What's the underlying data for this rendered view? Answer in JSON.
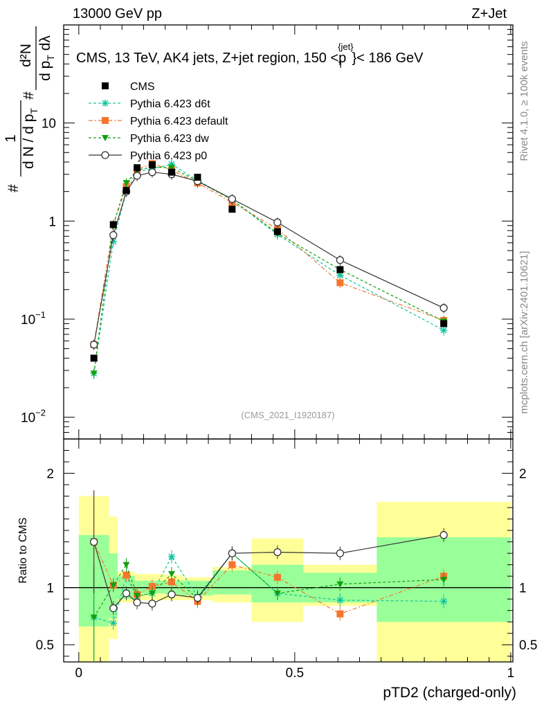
{
  "header": {
    "left": "13000 GeV pp",
    "right": "Z+Jet"
  },
  "side_labels": {
    "rivet": "Rivet 4.1.0, ≥ 100k events",
    "mcplots": "mcplots.cern.ch [arXiv:2401.10621]"
  },
  "chart_data": {
    "type": "line",
    "title": "CMS, 13 TeV, AK4 jets, Z+jet region, 150 <p",
    "title_sup": "{jet}",
    "title_sub": "T",
    "title_tail": "}< 186 GeV",
    "analysis_id": "(CMS_2021_I1920187)",
    "xlabel": "pTD2 (charged-only)",
    "ylabel_parts": {
      "num_prefix": "1",
      "den": "d N / d p",
      "den_sub": "T",
      "right_num": "d²N",
      "right_den": "d p",
      "right_den_sub": "T",
      "right_den_tail": " dλ",
      "hash": "#"
    },
    "ratio_ylabel": "Ratio to CMS",
    "xlim": [
      -0.035,
      1.005
    ],
    "ylim_main": [
      0.006,
      100
    ],
    "ylim_ratio": [
      0.35,
      2.3
    ],
    "x_ticks": [
      {
        "v": 0,
        "label": "0"
      },
      {
        "v": 0.5,
        "label": "0.5"
      },
      {
        "v": 1,
        "label": "1"
      }
    ],
    "y_ticks_main": [
      {
        "v": 0.01,
        "base": "10",
        "exp": "−2"
      },
      {
        "v": 0.1,
        "base": "10",
        "exp": "−1"
      },
      {
        "v": 1,
        "base": "1",
        "exp": ""
      },
      {
        "v": 10,
        "base": "10",
        "exp": ""
      }
    ],
    "y_ticks_ratio": [
      {
        "v": 0.5,
        "label": "0.5"
      },
      {
        "v": 1,
        "label": "1"
      },
      {
        "v": 2,
        "label": "2"
      }
    ],
    "bins": [
      {
        "lo": 0.0,
        "hi": 0.07,
        "band_green": [
          0.66,
          1.46
        ],
        "band_yellow": [
          0.35,
          1.8
        ]
      },
      {
        "lo": 0.07,
        "hi": 0.09,
        "band_green": [
          0.73,
          1.3
        ],
        "band_yellow": [
          0.55,
          1.62
        ]
      },
      {
        "lo": 0.09,
        "hi": 0.13,
        "band_green": [
          0.9,
          1.1
        ],
        "band_yellow": [
          0.87,
          1.14
        ]
      },
      {
        "lo": 0.13,
        "hi": 0.2,
        "band_green": [
          0.95,
          1.06
        ],
        "band_yellow": [
          0.89,
          1.12
        ]
      },
      {
        "lo": 0.2,
        "hi": 0.24,
        "band_green": [
          0.94,
          1.06
        ],
        "band_yellow": [
          0.89,
          1.11
        ]
      },
      {
        "lo": 0.24,
        "hi": 0.31,
        "band_green": [
          0.93,
          1.06
        ],
        "band_yellow": [
          0.89,
          1.09
        ]
      },
      {
        "lo": 0.31,
        "hi": 0.4,
        "band_green": [
          0.94,
          1.15
        ],
        "band_yellow": [
          0.87,
          1.18
        ]
      },
      {
        "lo": 0.4,
        "hi": 0.52,
        "band_green": [
          0.87,
          1.2
        ],
        "band_yellow": [
          0.7,
          1.43
        ]
      },
      {
        "lo": 0.52,
        "hi": 0.69,
        "band_green": [
          0.87,
          1.13
        ],
        "band_yellow": [
          0.84,
          1.2
        ]
      },
      {
        "lo": 0.69,
        "hi": 1.0,
        "band_green": [
          0.7,
          1.44
        ],
        "band_yellow": [
          0.35,
          1.75
        ]
      }
    ],
    "series": [
      {
        "name": "CMS",
        "marker": "square",
        "color": "#000000",
        "dash": "none",
        "x": [
          0.035,
          0.08,
          0.11,
          0.135,
          0.17,
          0.215,
          0.275,
          0.355,
          0.46,
          0.605,
          0.845
        ],
        "y": [
          0.04,
          0.92,
          2.05,
          3.5,
          3.75,
          3.15,
          2.8,
          1.32,
          0.78,
          0.32,
          0.09
        ]
      },
      {
        "name": "Pythia 6.423 d6t",
        "marker": "star",
        "color": "#13c3a0",
        "dash": "4,3",
        "x": [
          0.035,
          0.08,
          0.11,
          0.135,
          0.17,
          0.215,
          0.275,
          0.355,
          0.46,
          0.605,
          0.845
        ],
        "y": [
          0.028,
          0.62,
          2.0,
          3.2,
          3.4,
          3.8,
          2.6,
          1.65,
          0.73,
          0.28,
          0.077
        ],
        "ratio": [
          0.74,
          0.69,
          1.1,
          0.92,
          0.95,
          1.27,
          0.92,
          1.3,
          0.95,
          0.89,
          0.88
        ]
      },
      {
        "name": "Pythia 6.423 default",
        "marker": "square",
        "color": "#f5762d",
        "dash": "6,3,2,3",
        "x": [
          0.035,
          0.08,
          0.11,
          0.135,
          0.17,
          0.215,
          0.275,
          0.355,
          0.46,
          0.605,
          0.845
        ],
        "y": [
          0.055,
          0.92,
          2.25,
          3.35,
          3.85,
          3.3,
          2.45,
          1.55,
          0.83,
          0.235,
          0.097
        ],
        "ratio": [
          1.4,
          1.02,
          1.11,
          0.94,
          1.01,
          1.05,
          0.88,
          1.2,
          1.09,
          0.77,
          1.1
        ]
      },
      {
        "name": "Pythia 6.423 dw",
        "marker": "triangle",
        "color": "#11a00f",
        "dash": "4,3",
        "x": [
          0.035,
          0.08,
          0.11,
          0.135,
          0.17,
          0.215,
          0.275,
          0.355,
          0.46,
          0.605,
          0.845
        ],
        "y": [
          0.028,
          0.92,
          2.45,
          3.3,
          3.55,
          3.5,
          2.55,
          1.65,
          0.75,
          0.32,
          0.095
        ],
        "ratio": [
          0.74,
          1.02,
          1.2,
          0.93,
          0.95,
          1.12,
          0.9,
          1.3,
          0.95,
          1.03,
          1.07
        ]
      },
      {
        "name": "Pythia 6.423 p0",
        "marker": "circle",
        "color": "#333333",
        "dash": "none",
        "x": [
          0.035,
          0.08,
          0.11,
          0.135,
          0.17,
          0.215,
          0.275,
          0.355,
          0.46,
          0.605,
          0.845
        ],
        "y": [
          0.055,
          0.72,
          2.0,
          2.9,
          3.15,
          3.0,
          2.55,
          1.68,
          0.97,
          0.4,
          0.13
        ],
        "ratio": [
          1.4,
          0.82,
          0.95,
          0.87,
          0.86,
          0.94,
          0.91,
          1.3,
          1.31,
          1.3,
          1.46
        ]
      }
    ]
  }
}
